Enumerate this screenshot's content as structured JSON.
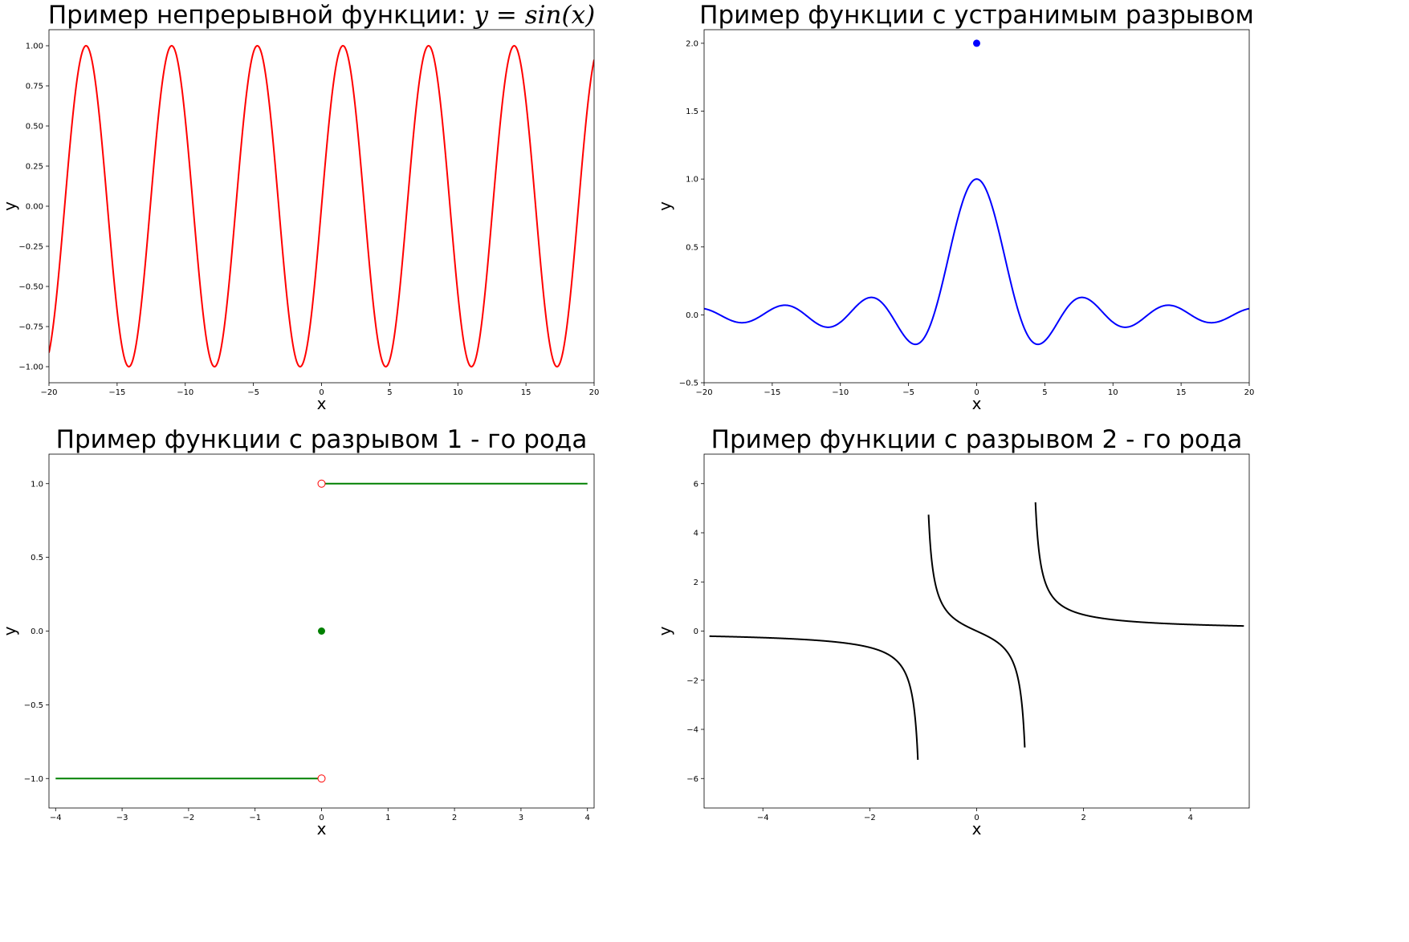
{
  "chart_data": [
    {
      "type": "line",
      "title": "Пример непрерывной функции: ",
      "title_math": "y = sin(x)",
      "xlabel": "x",
      "ylabel": "y",
      "xlim": [
        -20,
        20
      ],
      "ylim": [
        -1.1,
        1.1
      ],
      "xticks": [
        -20,
        -15,
        -10,
        -5,
        0,
        5,
        10,
        15,
        20
      ],
      "xtick_labels": [
        "−20",
        "−15",
        "−10",
        "−5",
        "0",
        "5",
        "10",
        "15",
        "20"
      ],
      "yticks": [
        -1.0,
        -0.75,
        -0.5,
        -0.25,
        0.0,
        0.25,
        0.5,
        0.75,
        1.0
      ],
      "ytick_labels": [
        "−1.00",
        "−0.75",
        "−0.50",
        "−0.25",
        "0.00",
        "0.25",
        "0.50",
        "0.75",
        "1.00"
      ],
      "series": [
        {
          "function": "sin",
          "domain": [
            -20,
            20
          ],
          "color": "#ff0000"
        }
      ],
      "grid": false
    },
    {
      "type": "line",
      "title": "Пример функции с устранимым разрывом",
      "xlabel": "x",
      "ylabel": "y",
      "xlim": [
        -20,
        20
      ],
      "ylim": [
        -0.5,
        2.1
      ],
      "xticks": [
        -20,
        -15,
        -10,
        -5,
        0,
        5,
        10,
        15,
        20
      ],
      "xtick_labels": [
        "−20",
        "−15",
        "−10",
        "−5",
        "0",
        "5",
        "10",
        "15",
        "20"
      ],
      "yticks": [
        -0.5,
        0.0,
        0.5,
        1.0,
        1.5,
        2.0
      ],
      "ytick_labels": [
        "−0.5",
        "0.0",
        "0.5",
        "1.0",
        "1.5",
        "2.0"
      ],
      "series": [
        {
          "function": "sinc",
          "domain": [
            -20,
            20
          ],
          "color": "#0000ff"
        }
      ],
      "points": [
        {
          "x": 0,
          "y": 2.0,
          "color": "#0000ff",
          "style": "filled"
        }
      ],
      "grid": false
    },
    {
      "type": "line",
      "title": "Пример функции с разрывом 1 - го рода",
      "xlabel": "x",
      "ylabel": "y",
      "xlim": [
        -4.1,
        4.1
      ],
      "ylim": [
        -1.2,
        1.2
      ],
      "xticks": [
        -4,
        -3,
        -2,
        -1,
        0,
        1,
        2,
        3,
        4
      ],
      "xtick_labels": [
        "−4",
        "−3",
        "−2",
        "−1",
        "0",
        "1",
        "2",
        "3",
        "4"
      ],
      "yticks": [
        -1.0,
        -0.5,
        0.0,
        0.5,
        1.0
      ],
      "ytick_labels": [
        "−1.0",
        "−0.5",
        "0.0",
        "0.5",
        "1.0"
      ],
      "series": [
        {
          "x": [
            -4,
            0
          ],
          "y": [
            -1,
            -1
          ],
          "color": "#008000"
        },
        {
          "x": [
            0,
            4
          ],
          "y": [
            1,
            1
          ],
          "color": "#008000"
        }
      ],
      "points": [
        {
          "x": 0,
          "y": 1,
          "color": "#ff0000",
          "style": "open"
        },
        {
          "x": 0,
          "y": -1,
          "color": "#ff0000",
          "style": "open"
        },
        {
          "x": 0,
          "y": 0,
          "color": "#008000",
          "style": "filled"
        }
      ],
      "grid": false
    },
    {
      "type": "line",
      "title": "Пример функции с разрывом 2 - го рода",
      "xlabel": "x",
      "ylabel": "y",
      "xlim": [
        -5.1,
        5.1
      ],
      "ylim": [
        -7.2,
        7.2
      ],
      "xticks": [
        -4,
        -2,
        0,
        2,
        4
      ],
      "xtick_labels": [
        "−4",
        "−2",
        "0",
        "2",
        "4"
      ],
      "yticks": [
        -6,
        -4,
        -2,
        0,
        2,
        4,
        6
      ],
      "ytick_labels": [
        "−6",
        "−4",
        "−2",
        "0",
        "2",
        "4",
        "6"
      ],
      "series": [
        {
          "function": "x/(x^2-1)",
          "domain": [
            -5,
            -1.1
          ],
          "color": "#000000"
        },
        {
          "function": "x/(x^2-1)",
          "domain": [
            -0.9,
            0.9
          ],
          "color": "#000000"
        },
        {
          "function": "x/(x^2-1)",
          "domain": [
            1.1,
            5
          ],
          "color": "#000000"
        }
      ],
      "grid": false
    }
  ]
}
